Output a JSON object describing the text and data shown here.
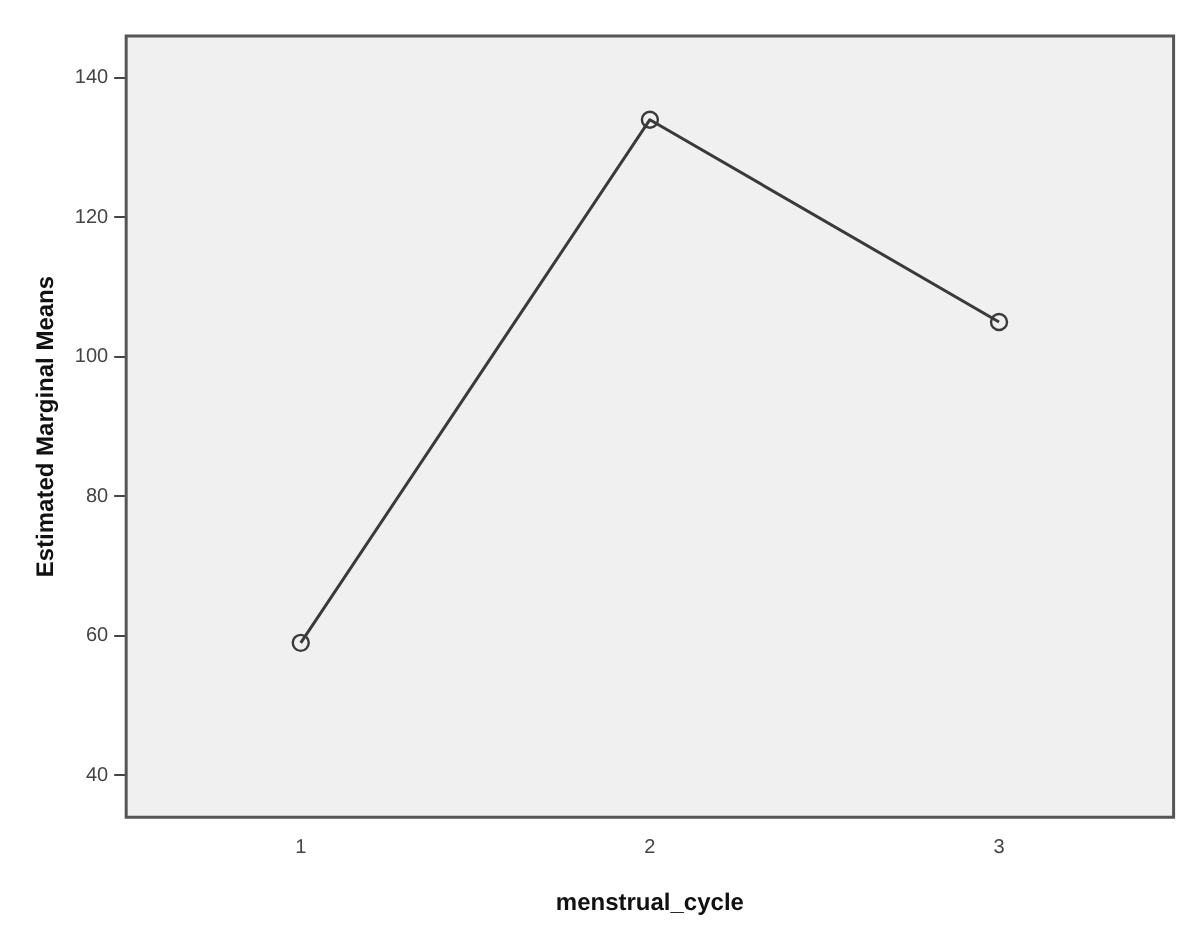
{
  "chart_data": {
    "type": "line",
    "xlabel": "menstrual_cycle",
    "ylabel": "Estimated Marginal Means",
    "categories": [
      "1",
      "2",
      "3"
    ],
    "series": [
      {
        "color": "#3a3a3a",
        "values": [
          59,
          134,
          105
        ]
      }
    ],
    "ylim": [
      34,
      146
    ],
    "yticks": [
      40,
      60,
      80,
      100,
      120,
      140
    ],
    "grid": false,
    "legend": false,
    "marker": "circle",
    "line_style": "solid"
  }
}
